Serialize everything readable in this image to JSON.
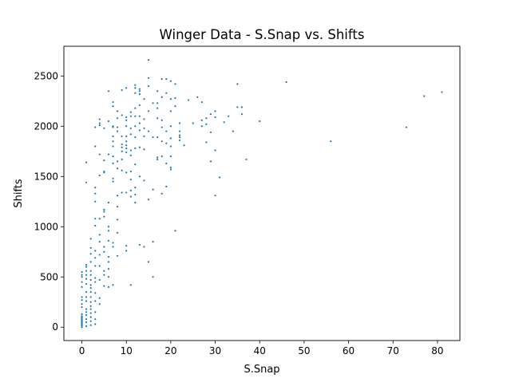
{
  "chart_data": {
    "type": "scatter",
    "title": "Winger Data - S.Snap vs. Shifts",
    "xlabel": "S.Snap",
    "ylabel": "Shifts",
    "xlim": [
      -4.05,
      85.05
    ],
    "ylim": [
      -133,
      2796
    ],
    "xticks": [
      0,
      10,
      20,
      30,
      40,
      50,
      60,
      70,
      80
    ],
    "yticks": [
      0,
      500,
      1000,
      1500,
      2000,
      2500
    ],
    "grid": false,
    "legend": "none",
    "marker_color": "#1f77b4",
    "series": [
      {
        "x": [
          0,
          0,
          0,
          0,
          0,
          0,
          0,
          0,
          0,
          0,
          0,
          0,
          0,
          0,
          0,
          0,
          0,
          0,
          0,
          0,
          0,
          0,
          1,
          1,
          1,
          1,
          1,
          1,
          1,
          1,
          1,
          1,
          1,
          1,
          1,
          1,
          1,
          1,
          1,
          2,
          2,
          2,
          2,
          2,
          2,
          2,
          2,
          2,
          2,
          2,
          2,
          2,
          2,
          2,
          2,
          2,
          2,
          3,
          3,
          3,
          3,
          3,
          3,
          3,
          3,
          3,
          3,
          3,
          3,
          3,
          3,
          3,
          3,
          3,
          4,
          4,
          4,
          4,
          4,
          4,
          4,
          4,
          4,
          4,
          4,
          4,
          4,
          5,
          5,
          5,
          5,
          5,
          5,
          5,
          5,
          5,
          5,
          5,
          5,
          6,
          6,
          6,
          6,
          6,
          6,
          6,
          6,
          6,
          6,
          6,
          6,
          7,
          7,
          7,
          7,
          7,
          7,
          7,
          7,
          7,
          7,
          7,
          7,
          7,
          7,
          8,
          8,
          8,
          8,
          8,
          8,
          8,
          8,
          8,
          8,
          8,
          9,
          9,
          9,
          9,
          9,
          9,
          9,
          9,
          9,
          10,
          10,
          10,
          10,
          10,
          10,
          10,
          10,
          10,
          10,
          10,
          10,
          10,
          11,
          11,
          11,
          11,
          11,
          11,
          11,
          11,
          11,
          11,
          11,
          12,
          12,
          12,
          12,
          12,
          12,
          12,
          12,
          12,
          12,
          12,
          12,
          13,
          13,
          13,
          13,
          13,
          13,
          13,
          13,
          13,
          13,
          14,
          14,
          14,
          14,
          14,
          14,
          14,
          15,
          15,
          15,
          15,
          15,
          15,
          15,
          16,
          16,
          16,
          16,
          16,
          17,
          17,
          17,
          17,
          17,
          17,
          17,
          18,
          18,
          18,
          18,
          18,
          18,
          18,
          19,
          19,
          19,
          19,
          19,
          19,
          20,
          20,
          20,
          20,
          20,
          20,
          20,
          20,
          20,
          21,
          21,
          21,
          21,
          22,
          22,
          22,
          22,
          22,
          23,
          24,
          25,
          26,
          27,
          27,
          27,
          28,
          28,
          28,
          29,
          29,
          29,
          30,
          30,
          30,
          30,
          31,
          32,
          33,
          34,
          35,
          35,
          36,
          36,
          37,
          40,
          46,
          56,
          73,
          77,
          81
        ],
        "y": [
          0,
          15,
          30,
          50,
          70,
          90,
          110,
          130,
          20,
          40,
          60,
          80,
          100,
          200,
          230,
          270,
          300,
          400,
          450,
          500,
          520,
          550,
          10,
          50,
          80,
          120,
          150,
          180,
          260,
          300,
          350,
          430,
          480,
          520,
          560,
          600,
          620,
          1440,
          1640,
          20,
          60,
          100,
          140,
          180,
          210,
          250,
          300,
          350,
          390,
          420,
          470,
          520,
          560,
          650,
          730,
          790,
          880,
          30,
          80,
          150,
          260,
          340,
          450,
          490,
          610,
          690,
          760,
          1010,
          1080,
          1250,
          1330,
          1390,
          1800,
          1990,
          230,
          290,
          470,
          610,
          720,
          850,
          920,
          1080,
          1510,
          1720,
          2010,
          2030,
          2070,
          410,
          520,
          560,
          750,
          800,
          1100,
          1150,
          1170,
          1540,
          1550,
          1660,
          1980,
          400,
          500,
          580,
          650,
          700,
          860,
          960,
          1000,
          1240,
          1720,
          2050,
          2350,
          420,
          800,
          840,
          1450,
          1480,
          1630,
          1700,
          1800,
          1850,
          1900,
          1990,
          2000,
          2200,
          2240,
          710,
          940,
          1070,
          1200,
          1310,
          1580,
          1650,
          1950,
          1990,
          2080,
          2150,
          1340,
          1560,
          1670,
          1750,
          1790,
          1820,
          1900,
          2110,
          2360,
          760,
          810,
          1340,
          1540,
          1740,
          1780,
          1810,
          1850,
          1900,
          2000,
          2060,
          2090,
          2380,
          420,
          1300,
          1360,
          1470,
          1550,
          1710,
          1760,
          1920,
          1980,
          2100,
          2140,
          1240,
          1320,
          1390,
          1620,
          1780,
          1890,
          2000,
          2100,
          2180,
          2330,
          2380,
          2410,
          820,
          1500,
          1790,
          1960,
          2030,
          2100,
          2210,
          2320,
          2350,
          2370,
          800,
          1460,
          1770,
          1900,
          1980,
          2070,
          2270,
          650,
          1270,
          1950,
          2150,
          2400,
          2480,
          2660,
          500,
          850,
          1370,
          1890,
          2230,
          1670,
          1690,
          1890,
          2080,
          2180,
          2230,
          2350,
          1330,
          1700,
          1850,
          1990,
          2060,
          2290,
          2470,
          1400,
          1630,
          1830,
          1950,
          2330,
          2470,
          1570,
          1590,
          1700,
          1800,
          1880,
          2000,
          2150,
          2270,
          2450,
          960,
          2200,
          2280,
          2420,
          1860,
          1890,
          1910,
          1950,
          2030,
          1810,
          2260,
          2030,
          2290,
          2000,
          2060,
          2240,
          1840,
          2020,
          2080,
          1650,
          1940,
          2120,
          1310,
          1760,
          2090,
          2150,
          1490,
          2040,
          2100,
          1950,
          2190,
          2420,
          2120,
          2190,
          1670,
          2050,
          2440,
          1850,
          1990,
          2300,
          2340
        ]
      }
    ]
  }
}
